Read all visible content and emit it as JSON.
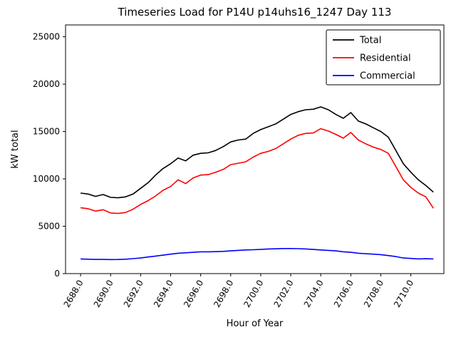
{
  "chart_data": {
    "type": "line",
    "title": "Timeseries Load for P14U p14uhs16_1247  Day 113",
    "xlabel": "Hour of Year",
    "ylabel": "kW total",
    "grid": false,
    "legend_position": "upper right",
    "xlim": [
      2687.0,
      2712.2
    ],
    "ylim": [
      0,
      26250
    ],
    "xticks": [
      2688,
      2690,
      2692,
      2694,
      2696,
      2698,
      2700,
      2702,
      2704,
      2706,
      2708,
      2710
    ],
    "xtick_labels": [
      "2688.0",
      "2690.0",
      "2692.0",
      "2694.0",
      "2696.0",
      "2698.0",
      "2700.0",
      "2702.0",
      "2704.0",
      "2706.0",
      "2708.0",
      "2710.0"
    ],
    "yticks": [
      0,
      5000,
      10000,
      15000,
      20000,
      25000
    ],
    "ytick_labels": [
      "0",
      "5000",
      "10000",
      "15000",
      "20000",
      "25000"
    ],
    "x": [
      2688.0,
      2688.5,
      2689.0,
      2689.5,
      2690.0,
      2690.5,
      2691.0,
      2691.5,
      2692.0,
      2692.5,
      2693.0,
      2693.5,
      2694.0,
      2694.5,
      2695.0,
      2695.5,
      2696.0,
      2696.5,
      2697.0,
      2697.5,
      2698.0,
      2698.5,
      2699.0,
      2699.5,
      2700.0,
      2700.5,
      2701.0,
      2701.5,
      2702.0,
      2702.5,
      2703.0,
      2703.5,
      2704.0,
      2704.5,
      2705.0,
      2705.5,
      2706.0,
      2706.5,
      2707.0,
      2707.5,
      2708.0,
      2708.5,
      2709.0,
      2709.5,
      2710.0,
      2710.5,
      2711.0,
      2711.5
    ],
    "series": [
      {
        "name": "Total",
        "color": "#000000",
        "values": [
          8500,
          8400,
          8150,
          8350,
          8050,
          8000,
          8100,
          8400,
          9000,
          9600,
          10400,
          11100,
          11600,
          12200,
          11900,
          12500,
          12700,
          12750,
          13000,
          13400,
          13900,
          14100,
          14200,
          14800,
          15200,
          15500,
          15800,
          16300,
          16800,
          17100,
          17300,
          17350,
          17600,
          17300,
          16800,
          16400,
          17000,
          16100,
          15800,
          15400,
          15000,
          14400,
          13000,
          11600,
          10700,
          9900,
          9300,
          8600
        ]
      },
      {
        "name": "Residential",
        "color": "#ff0000",
        "values": [
          6950,
          6850,
          6600,
          6750,
          6400,
          6350,
          6450,
          6800,
          7300,
          7700,
          8200,
          8800,
          9200,
          9900,
          9500,
          10100,
          10400,
          10450,
          10700,
          11000,
          11500,
          11650,
          11800,
          12300,
          12700,
          12900,
          13200,
          13700,
          14200,
          14600,
          14800,
          14850,
          15300,
          15050,
          14700,
          14300,
          14900,
          14100,
          13700,
          13350,
          13100,
          12700,
          11300,
          9900,
          9100,
          8500,
          8100,
          6900
        ]
      },
      {
        "name": "Commercial",
        "color": "#0000ff",
        "values": [
          1550,
          1520,
          1500,
          1500,
          1480,
          1490,
          1520,
          1580,
          1650,
          1750,
          1850,
          1950,
          2050,
          2150,
          2200,
          2250,
          2300,
          2300,
          2320,
          2350,
          2400,
          2450,
          2500,
          2520,
          2550,
          2600,
          2620,
          2650,
          2650,
          2630,
          2600,
          2550,
          2500,
          2450,
          2400,
          2300,
          2250,
          2150,
          2100,
          2050,
          2000,
          1900,
          1800,
          1650,
          1600,
          1550,
          1570,
          1550
        ]
      }
    ]
  }
}
